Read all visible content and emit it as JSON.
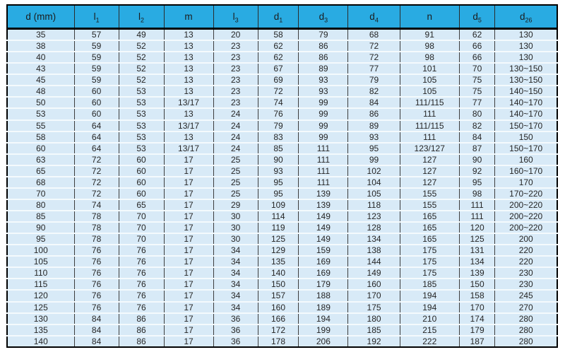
{
  "table": {
    "headers": [
      {
        "base": "d (mm)",
        "sub": ""
      },
      {
        "base": "l",
        "sub": "1"
      },
      {
        "base": "l",
        "sub": "2"
      },
      {
        "base": "m",
        "sub": ""
      },
      {
        "base": "l",
        "sub": "3"
      },
      {
        "base": "d",
        "sub": "1"
      },
      {
        "base": "d",
        "sub": "3"
      },
      {
        "base": "d",
        "sub": "4"
      },
      {
        "base": "n",
        "sub": ""
      },
      {
        "base": "d",
        "sub": "5"
      },
      {
        "base": "d",
        "sub": "26"
      }
    ],
    "rows": [
      [
        "35",
        "57",
        "49",
        "13",
        "20",
        "58",
        "79",
        "68",
        "91",
        "62",
        "130"
      ],
      [
        "38",
        "59",
        "52",
        "13",
        "23",
        "62",
        "86",
        "72",
        "98",
        "66",
        "130"
      ],
      [
        "40",
        "59",
        "52",
        "13",
        "23",
        "62",
        "86",
        "72",
        "98",
        "66",
        "130"
      ],
      [
        "43",
        "59",
        "52",
        "13",
        "23",
        "67",
        "89",
        "77",
        "101",
        "70",
        "130~150"
      ],
      [
        "45",
        "59",
        "52",
        "13",
        "23",
        "69",
        "93",
        "79",
        "105",
        "75",
        "130~150"
      ],
      [
        "48",
        "60",
        "53",
        "13",
        "23",
        "72",
        "93",
        "82",
        "105",
        "75",
        "140~150"
      ],
      [
        "50",
        "60",
        "53",
        "13/17",
        "23",
        "74",
        "99",
        "84",
        "111/115",
        "77",
        "140~170"
      ],
      [
        "53",
        "60",
        "53",
        "13",
        "24",
        "76",
        "99",
        "86",
        "111",
        "80",
        "140~170"
      ],
      [
        "55",
        "64",
        "53",
        "13/17",
        "24",
        "79",
        "99",
        "89",
        "111/115",
        "82",
        "150~170"
      ],
      [
        "58",
        "64",
        "53",
        "13",
        "24",
        "83",
        "99",
        "93",
        "111",
        "84",
        "150"
      ],
      [
        "60",
        "64",
        "53",
        "13/17",
        "24",
        "85",
        "111",
        "95",
        "123/127",
        "87",
        "150~170"
      ],
      [
        "63",
        "72",
        "60",
        "17",
        "25",
        "90",
        "111",
        "99",
        "127",
        "90",
        "160"
      ],
      [
        "65",
        "72",
        "60",
        "17",
        "25",
        "93",
        "111",
        "102",
        "127",
        "92",
        "160~170"
      ],
      [
        "68",
        "72",
        "60",
        "17",
        "25",
        "95",
        "111",
        "104",
        "127",
        "95",
        "170"
      ],
      [
        "70",
        "72",
        "60",
        "17",
        "25",
        "95",
        "139",
        "105",
        "155",
        "98",
        "170~220"
      ],
      [
        "80",
        "74",
        "65",
        "17",
        "29",
        "109",
        "139",
        "118",
        "155",
        "111",
        "200~220"
      ],
      [
        "85",
        "78",
        "70",
        "17",
        "30",
        "114",
        "149",
        "123",
        "165",
        "111",
        "200~220"
      ],
      [
        "90",
        "78",
        "70",
        "17",
        "30",
        "119",
        "149",
        "128",
        "165",
        "120",
        "200~220"
      ],
      [
        "95",
        "78",
        "70",
        "17",
        "30",
        "125",
        "149",
        "134",
        "165",
        "125",
        "200"
      ],
      [
        "100",
        "76",
        "76",
        "17",
        "34",
        "129",
        "159",
        "138",
        "175",
        "131",
        "220"
      ],
      [
        "105",
        "76",
        "76",
        "17",
        "34",
        "135",
        "169",
        "144",
        "175",
        "134",
        "220"
      ],
      [
        "110",
        "76",
        "76",
        "17",
        "34",
        "140",
        "169",
        "149",
        "175",
        "139",
        "230"
      ],
      [
        "115",
        "76",
        "76",
        "17",
        "34",
        "150",
        "179",
        "160",
        "185",
        "150",
        "230"
      ],
      [
        "120",
        "76",
        "76",
        "17",
        "34",
        "157",
        "188",
        "170",
        "194",
        "158",
        "245"
      ],
      [
        "125",
        "76",
        "76",
        "17",
        "34",
        "160",
        "189",
        "175",
        "194",
        "170",
        "270"
      ],
      [
        "130",
        "84",
        "86",
        "17",
        "36",
        "166",
        "194",
        "180",
        "210",
        "174",
        "280"
      ],
      [
        "135",
        "84",
        "86",
        "17",
        "36",
        "172",
        "199",
        "185",
        "215",
        "179",
        "280"
      ],
      [
        "140",
        "84",
        "86",
        "17",
        "36",
        "178",
        "206",
        "192",
        "222",
        "187",
        "280"
      ]
    ]
  },
  "colors": {
    "header_bg": "#29ABE2",
    "row_bg": "#D8EAF7",
    "row_separator": "#F4FAFD",
    "column_line": "#3d3d3d",
    "outer_border": "#000000",
    "text": "#262626"
  }
}
